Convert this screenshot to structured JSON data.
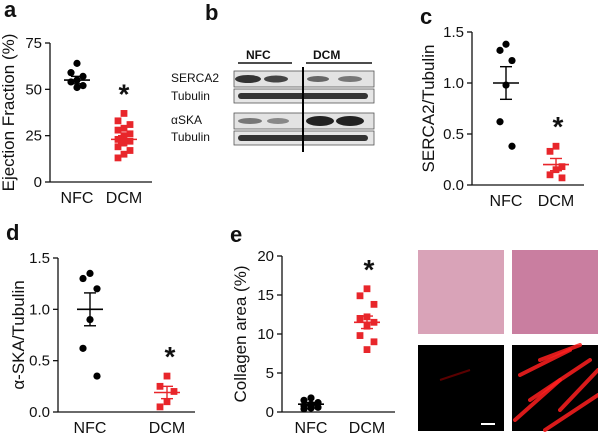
{
  "colors": {
    "nfc": "#000000",
    "dcm": "#e8262b",
    "axis": "#111111",
    "micro_pink": "#d9a3b8",
    "micro_dark": "#000000"
  },
  "panel_letters": {
    "a": "a",
    "b": "b",
    "c": "c",
    "d": "d",
    "e": "e"
  },
  "blot": {
    "groups": [
      "NFC",
      "DCM"
    ],
    "rows": [
      "SERCA2",
      "Tubulin",
      "αSKA",
      "Tubulin"
    ]
  },
  "chart_data": [
    {
      "id": "a",
      "type": "scatter",
      "ylabel": "Ejection Fraction (%)",
      "categories": [
        "NFC",
        "DCM"
      ],
      "ylim": [
        0,
        75
      ],
      "yticks": [
        "0",
        "25",
        "50",
        "75"
      ],
      "series": [
        {
          "points": [
            64,
            59,
            57,
            55,
            54,
            52,
            51
          ],
          "mean": 55,
          "sem": 2
        },
        {
          "points": [
            37,
            33,
            31,
            29,
            28,
            26,
            25,
            23,
            22,
            21,
            19,
            17,
            15,
            13
          ],
          "mean": 23,
          "sem": 2
        }
      ],
      "annotation": "*"
    },
    {
      "id": "c",
      "type": "scatter",
      "ylabel": "SERCA2/Tubulin",
      "categories": [
        "NFC",
        "DCM"
      ],
      "ylim": [
        0,
        1.5
      ],
      "yticks": [
        "0.0",
        "0.5",
        "1.0",
        "1.5"
      ],
      "series": [
        {
          "points": [
            1.38,
            1.32,
            1.22,
            0.98,
            0.62,
            0.38
          ],
          "mean": 1.0,
          "sem": 0.16
        },
        {
          "points": [
            0.38,
            0.33,
            0.18,
            0.15,
            0.1,
            0.07
          ],
          "mean": 0.2,
          "sem": 0.06
        }
      ],
      "annotation": "*"
    },
    {
      "id": "d",
      "type": "scatter",
      "ylabel": "α-SKA/Tubulin",
      "categories": [
        "NFC",
        "DCM"
      ],
      "ylim": [
        0,
        1.5
      ],
      "yticks": [
        "0.0",
        "0.5",
        "1.0",
        "1.5"
      ],
      "series": [
        {
          "points": [
            1.35,
            1.3,
            1.2,
            0.9,
            0.62,
            0.35
          ],
          "mean": 1.0,
          "sem": 0.16
        },
        {
          "points": [
            0.35,
            0.25,
            0.2,
            0.1,
            0.05
          ],
          "mean": 0.19,
          "sem": 0.06
        }
      ],
      "annotation": "*"
    },
    {
      "id": "e",
      "type": "scatter",
      "ylabel": "Collagen area (%)",
      "categories": [
        "NFC",
        "DCM"
      ],
      "ylim": [
        0,
        20
      ],
      "yticks": [
        "0",
        "5",
        "10",
        "15",
        "20"
      ],
      "series": [
        {
          "points": [
            1.8,
            1.5,
            1.2,
            1.0,
            0.8,
            0.6,
            0.5,
            0.4
          ],
          "mean": 1.0,
          "sem": 0.2
        },
        {
          "points": [
            15.8,
            14.9,
            13.8,
            12.2,
            12.0,
            11.5,
            11.0,
            9.8,
            9.0,
            8.0
          ],
          "mean": 11.5,
          "sem": 0.8
        }
      ],
      "annotation": "*"
    }
  ]
}
